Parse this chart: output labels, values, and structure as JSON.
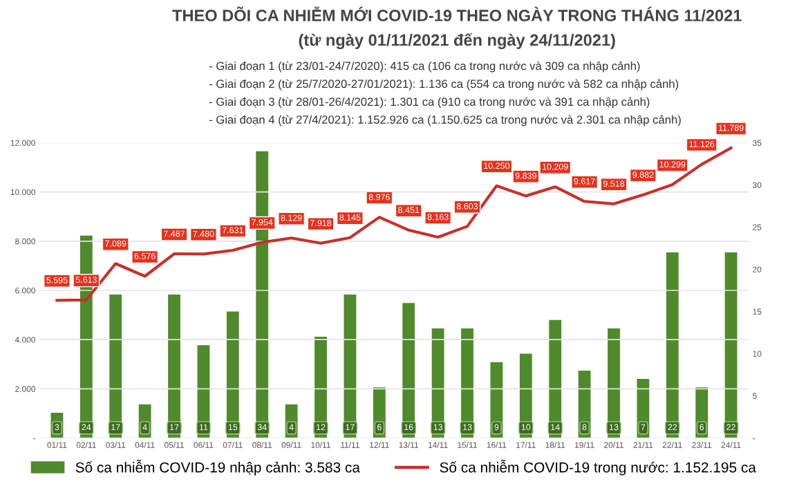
{
  "chart_data": {
    "type": "bar",
    "title": "THEO DÕI CA NHIỄM MỚI COVID-19 THEO NGÀY TRONG THÁNG 11/2021",
    "subtitle": "(từ ngày 01/11/2021 đến ngày 24/11/2021)",
    "annotations": [
      "- Giai đoạn 1 (từ 23/01-24/7/2020): 415 ca (106 ca trong nước và 309 ca nhập cảnh)",
      "- Giai đoạn 2 (từ 25/7/2020-27/01/2021): 1.136 ca (554 ca trong nước và 582 ca nhập cảnh)",
      "- Giai đoạn 3 (từ 28/01-26/4/2021): 1.301 ca (910 ca trong nước và 391 ca nhập cảnh)",
      "- Giai đoạn 4 (từ 27/4/2021): 1.152.926 ca (1.150.625 ca trong nước và 2.301 ca nhập cảnh)"
    ],
    "categories": [
      "01/11",
      "02/11",
      "03/11",
      "04/11",
      "05/11",
      "06/11",
      "07/11",
      "08/11",
      "09/11",
      "10/11",
      "11/11",
      "12/11",
      "13/11",
      "14/11",
      "15/11",
      "16/11",
      "17/11",
      "18/11",
      "19/11",
      "20/11",
      "21/11",
      "22/11",
      "23/11",
      "24/11"
    ],
    "series": [
      {
        "name": "Số ca nhiễm COVID-19 nhập cảnh: 3.583 ca",
        "axis": "y2",
        "color": "#4f8a2b",
        "values": [
          3,
          24,
          17,
          4,
          17,
          11,
          15,
          34,
          4,
          12,
          17,
          6,
          16,
          13,
          13,
          9,
          10,
          14,
          8,
          13,
          7,
          22,
          6,
          22
        ],
        "value_labels": [
          "3",
          "24",
          "17",
          "4",
          "17",
          "11",
          "15",
          "34",
          "4",
          "12",
          "17",
          "6",
          "16",
          "13",
          "13",
          "9",
          "10",
          "14",
          "8",
          "13",
          "7",
          "22",
          "6",
          "22"
        ]
      },
      {
        "name": "Số ca nhiễm COVID-19 trong nước: 1.152.195 ca",
        "type": "line",
        "color": "#c8302a",
        "values": [
          5595,
          5613,
          7089,
          6576,
          7487,
          7480,
          7631,
          7954,
          8129,
          7918,
          8145,
          8976,
          8451,
          8163,
          8603,
          10250,
          9839,
          10209,
          9617,
          9518,
          9882,
          10299,
          11126,
          11789
        ],
        "value_labels": [
          "5.595",
          "5.613",
          "7.089",
          "6.576",
          "7.487",
          "7.480",
          "7.631",
          "7.954",
          "8.129",
          "7.918",
          "8.145",
          "8.976",
          "8.451",
          "8.163",
          "8.603",
          "10.250",
          "9.839",
          "10.209",
          "9.617",
          "9.518",
          "9.882",
          "10.299",
          "11.126",
          "11.789"
        ]
      }
    ],
    "ylim": [
      0,
      12000
    ],
    "yticks": [
      {
        "value": 0,
        "label": "-"
      },
      {
        "value": 2000,
        "label": "2.000"
      },
      {
        "value": 4000,
        "label": "4.000"
      },
      {
        "value": 6000,
        "label": "6.000"
      },
      {
        "value": 8000,
        "label": "8.000"
      },
      {
        "value": 10000,
        "label": "10.000"
      },
      {
        "value": 12000,
        "label": "12.000"
      }
    ],
    "y2lim": [
      0,
      35
    ],
    "y2ticks": [
      {
        "value": 0,
        "label": "-"
      },
      5,
      10,
      15,
      20,
      25,
      30,
      35
    ],
    "grid": "y",
    "legend": "bottom",
    "marker": "none",
    "line_style": "solid"
  }
}
